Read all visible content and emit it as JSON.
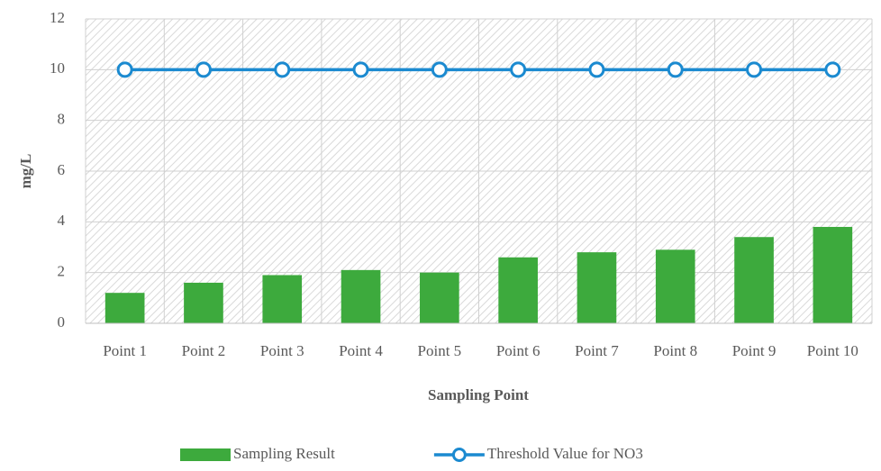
{
  "chart_data": {
    "type": "bar",
    "xlabel": "Sampling Point",
    "ylabel": "mg/L",
    "categories": [
      "Point 1",
      "Point 2",
      "Point 3",
      "Point 4",
      "Point 5",
      "Point 6",
      "Point 7",
      "Point 8",
      "Point 9",
      "Point 10"
    ],
    "series": [
      {
        "name": "Sampling Result",
        "type": "bar",
        "color": "#3daa3d",
        "values": [
          1.2,
          1.6,
          1.9,
          2.1,
          2.0,
          2.6,
          2.8,
          2.9,
          3.4,
          3.8
        ]
      },
      {
        "name": "Threshold Value for NO3",
        "type": "line",
        "color": "#1b8ad0",
        "values": [
          10,
          10,
          10,
          10,
          10,
          10,
          10,
          10,
          10,
          10
        ]
      }
    ],
    "ylim": [
      0,
      12
    ],
    "yticks": [
      0,
      2,
      4,
      6,
      8,
      10,
      12
    ],
    "grid": true,
    "legend": "bottom"
  }
}
